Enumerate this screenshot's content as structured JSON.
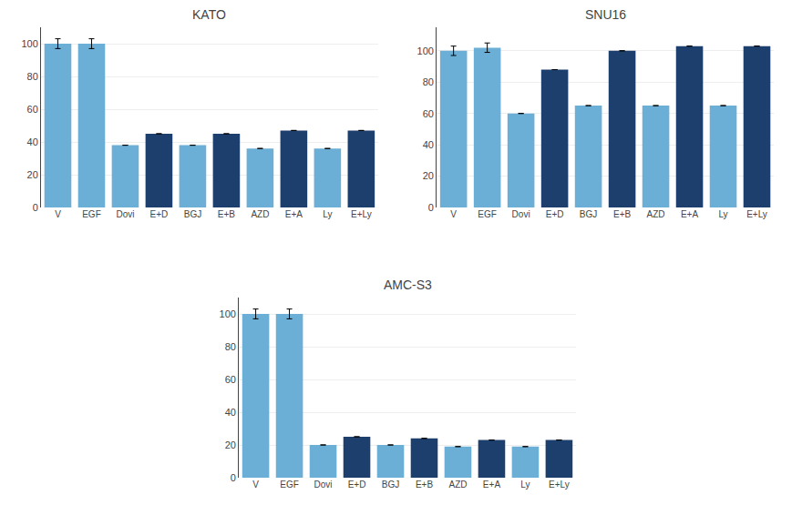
{
  "chart_data": [
    {
      "type": "bar",
      "title": "KATO",
      "categories": [
        "V",
        "EGF",
        "Dovi",
        "E+D",
        "BGJ",
        "E+B",
        "AZD",
        "E+A",
        "Ly",
        "E+Ly"
      ],
      "values": [
        100,
        100,
        38,
        45,
        38,
        45,
        36,
        47,
        36,
        47
      ],
      "colors": [
        "#6baed6",
        "#6baed6",
        "#6baed6",
        "#1c3f6e",
        "#6baed6",
        "#1c3f6e",
        "#6baed6",
        "#1c3f6e",
        "#6baed6",
        "#1c3f6e"
      ],
      "errors": [
        3,
        3,
        null,
        null,
        null,
        null,
        null,
        null,
        null,
        null
      ],
      "ylim": [
        0,
        110
      ],
      "yticks": [
        0,
        20,
        40,
        60,
        80,
        100
      ],
      "grid": true
    },
    {
      "type": "bar",
      "title": "SNU16",
      "categories": [
        "V",
        "EGF",
        "Dovi",
        "E+D",
        "BGJ",
        "E+B",
        "AZD",
        "E+A",
        "Ly",
        "E+Ly"
      ],
      "values": [
        100,
        102,
        60,
        88,
        65,
        100,
        65,
        103,
        65,
        103
      ],
      "colors": [
        "#6baed6",
        "#6baed6",
        "#6baed6",
        "#1c3f6e",
        "#6baed6",
        "#1c3f6e",
        "#6baed6",
        "#1c3f6e",
        "#6baed6",
        "#1c3f6e"
      ],
      "errors": [
        3,
        3,
        null,
        null,
        null,
        null,
        null,
        null,
        null,
        null
      ],
      "ylim": [
        0,
        115
      ],
      "yticks": [
        0,
        20,
        40,
        60,
        80,
        100
      ],
      "grid": true
    },
    {
      "type": "bar",
      "title": "AMC-S3",
      "categories": [
        "V",
        "EGF",
        "Dovi",
        "E+D",
        "BGJ",
        "E+B",
        "AZD",
        "E+A",
        "Ly",
        "E+Ly"
      ],
      "values": [
        100,
        100,
        20,
        25,
        20,
        24,
        19,
        23,
        19,
        23
      ],
      "colors": [
        "#6baed6",
        "#6baed6",
        "#6baed6",
        "#1c3f6e",
        "#6baed6",
        "#1c3f6e",
        "#6baed6",
        "#1c3f6e",
        "#6baed6",
        "#1c3f6e"
      ],
      "errors": [
        3,
        3,
        null,
        null,
        null,
        null,
        null,
        null,
        null,
        null
      ],
      "ylim": [
        0,
        110
      ],
      "yticks": [
        0,
        20,
        40,
        60,
        80,
        100
      ],
      "grid": true
    }
  ]
}
